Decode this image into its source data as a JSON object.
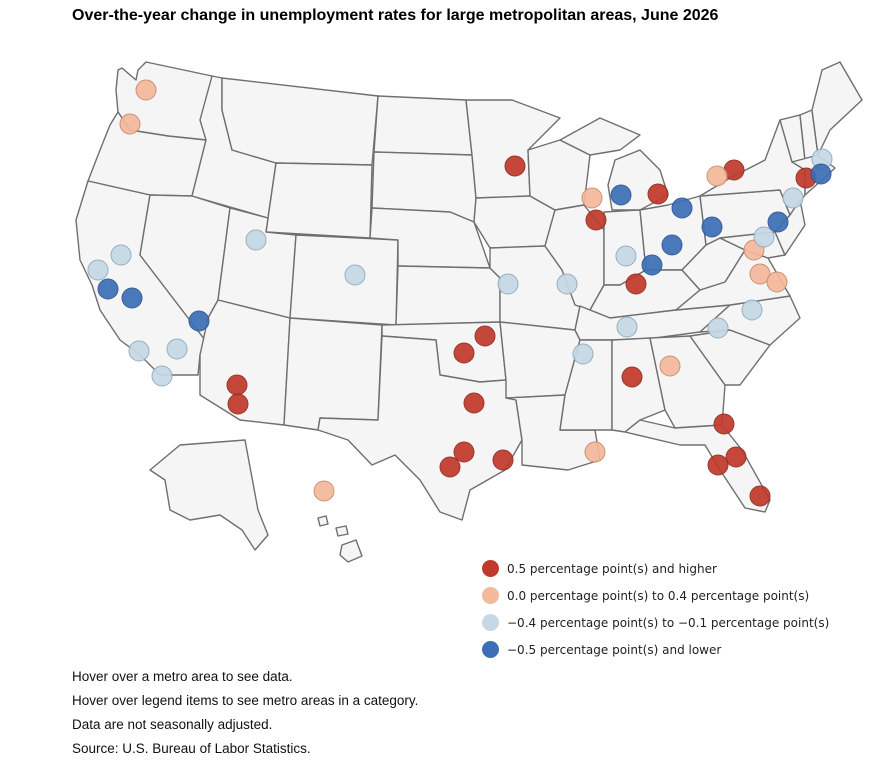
{
  "title": "Over-the-year change in unemployment rates for large metropolitan areas, June 2026",
  "categories": [
    {
      "label": "0.5 percentage point(s) and higher",
      "color": "#c0392b"
    },
    {
      "label": "0.0 percentage point(s) to 0.4 percentage point(s)",
      "color": "#f4b89a"
    },
    {
      "label": "−0.4 percentage point(s) to −0.1 percentage point(s)",
      "color": "#c6d8e6"
    },
    {
      "label": "−0.5 percentage point(s) and lower",
      "color": "#3b6fb6"
    }
  ],
  "notes": [
    "Hover over a metro area to see data.",
    "Hover over legend items to see metro areas in a category.",
    "Data are not seasonally adjusted.",
    "Source: U.S. Bureau of Labor Statistics."
  ]
}
